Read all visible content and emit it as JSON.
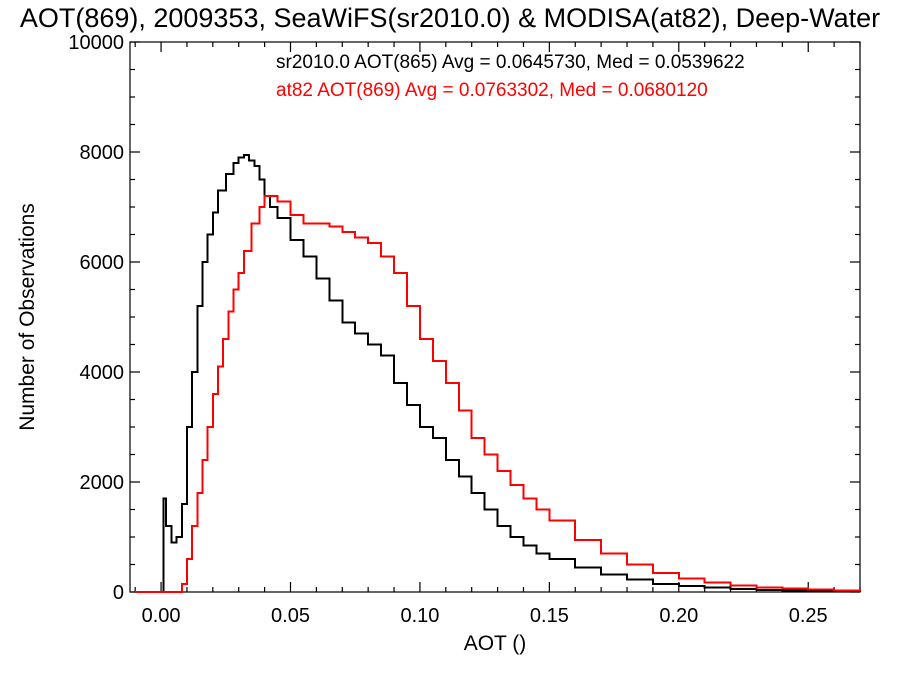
{
  "chart_data": {
    "type": "line",
    "title": "AOT(869), 2009353, SeaWiFS(sr2010.0) & MODISA(at82), Deep-Water",
    "xlabel": "AOT ()",
    "ylabel": "Number of Observations",
    "xlim": [
      -0.012,
      0.27
    ],
    "ylim": [
      0,
      10000
    ],
    "x_ticks": [
      0.0,
      0.05,
      0.1,
      0.15,
      0.2,
      0.25
    ],
    "x_tick_labels": [
      "0.00",
      "0.05",
      "0.10",
      "0.15",
      "0.20",
      "0.25"
    ],
    "y_ticks": [
      0,
      2000,
      4000,
      6000,
      8000,
      10000
    ],
    "y_tick_labels": [
      "0",
      "2000",
      "4000",
      "6000",
      "8000",
      "10000"
    ],
    "grid": false,
    "legend_placement": "top-right",
    "series": [
      {
        "name": "sr2010.0 AOT(865) Avg = 0.0645730, Med = 0.0539622",
        "color": "#000000",
        "x": [
          -0.01,
          0.0,
          0.001,
          0.002,
          0.004,
          0.006,
          0.008,
          0.01,
          0.012,
          0.014,
          0.016,
          0.018,
          0.02,
          0.022,
          0.025,
          0.028,
          0.03,
          0.032,
          0.034,
          0.036,
          0.038,
          0.04,
          0.042,
          0.045,
          0.05,
          0.055,
          0.06,
          0.065,
          0.07,
          0.075,
          0.08,
          0.085,
          0.09,
          0.095,
          0.1,
          0.105,
          0.11,
          0.115,
          0.12,
          0.125,
          0.13,
          0.135,
          0.14,
          0.145,
          0.15,
          0.16,
          0.17,
          0.18,
          0.19,
          0.2,
          0.21,
          0.22,
          0.23,
          0.24,
          0.25,
          0.26,
          0.27
        ],
        "y": [
          0,
          0,
          1700,
          1200,
          900,
          1000,
          1600,
          3000,
          4000,
          5200,
          6000,
          6500,
          6900,
          7300,
          7600,
          7800,
          7900,
          7950,
          7850,
          7750,
          7500,
          7200,
          7000,
          6800,
          6400,
          6100,
          5700,
          5300,
          4900,
          4700,
          4500,
          4300,
          3800,
          3400,
          3000,
          2800,
          2400,
          2100,
          1800,
          1500,
          1200,
          1000,
          850,
          700,
          600,
          450,
          320,
          230,
          150,
          110,
          80,
          55,
          40,
          30,
          20,
          15,
          10
        ]
      },
      {
        "name": "at82 AOT(869) Avg = 0.0763302, Med = 0.0680120",
        "color": "#ff0000",
        "x": [
          -0.01,
          0.0,
          0.005,
          0.008,
          0.01,
          0.012,
          0.014,
          0.016,
          0.018,
          0.02,
          0.022,
          0.024,
          0.026,
          0.028,
          0.03,
          0.032,
          0.035,
          0.038,
          0.04,
          0.045,
          0.05,
          0.055,
          0.06,
          0.065,
          0.07,
          0.075,
          0.08,
          0.085,
          0.09,
          0.095,
          0.1,
          0.105,
          0.11,
          0.115,
          0.12,
          0.125,
          0.13,
          0.135,
          0.14,
          0.145,
          0.15,
          0.16,
          0.17,
          0.18,
          0.19,
          0.2,
          0.21,
          0.22,
          0.23,
          0.24,
          0.25,
          0.26,
          0.27
        ],
        "y": [
          0,
          0,
          0,
          150,
          600,
          1200,
          1800,
          2400,
          3000,
          3600,
          4100,
          4600,
          5100,
          5500,
          5800,
          6200,
          6700,
          7000,
          7200,
          7100,
          6850,
          6700,
          6700,
          6650,
          6550,
          6450,
          6350,
          6100,
          5800,
          5200,
          4600,
          4200,
          3800,
          3300,
          2800,
          2500,
          2200,
          1950,
          1700,
          1500,
          1300,
          950,
          700,
          500,
          350,
          250,
          170,
          120,
          80,
          60,
          45,
          30,
          20
        ]
      }
    ]
  }
}
